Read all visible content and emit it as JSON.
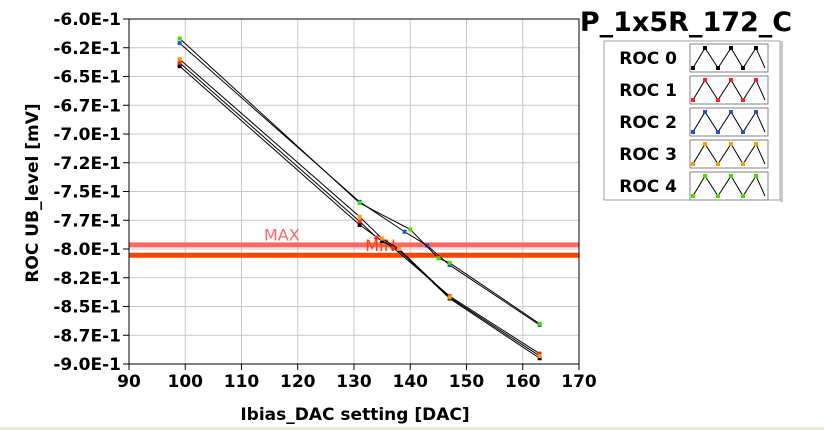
{
  "window": {
    "bottom_strip_color": "#ece9d8"
  },
  "chart_data": {
    "type": "line",
    "title": "P_1x5R_172_C",
    "xlabel": "Ibias_DAC setting [DAC]",
    "ylabel": "ROC UB_level [mV]",
    "xlim": [
      90,
      170
    ],
    "ylim": [
      -0.9,
      -0.6
    ],
    "x_ticks": [
      90,
      100,
      110,
      120,
      130,
      140,
      150,
      160,
      170
    ],
    "y_ticks": [
      {
        "value": -0.6,
        "label": "-6.0E-1"
      },
      {
        "value": -0.625,
        "label": "-6.2E-1"
      },
      {
        "value": -0.65,
        "label": "-6.5E-1"
      },
      {
        "value": -0.675,
        "label": "-6.7E-1"
      },
      {
        "value": -0.7,
        "label": "-7.0E-1"
      },
      {
        "value": -0.725,
        "label": "-7.2E-1"
      },
      {
        "value": -0.75,
        "label": "-7.5E-1"
      },
      {
        "value": -0.775,
        "label": "-7.7E-1"
      },
      {
        "value": -0.8,
        "label": "-8.0E-1"
      },
      {
        "value": -0.825,
        "label": "-8.2E-1"
      },
      {
        "value": -0.85,
        "label": "-8.5E-1"
      },
      {
        "value": -0.875,
        "label": "-8.7E-1"
      },
      {
        "value": -0.9,
        "label": "-9.0E-1"
      }
    ],
    "grid": true,
    "legend_position": "top-right",
    "reference_lines": [
      {
        "label": "MAX",
        "y": -0.796,
        "color": "#ff6666"
      },
      {
        "label": "MIN",
        "y": -0.805,
        "color": "#ff4400"
      }
    ],
    "series": [
      {
        "name": "ROC 0",
        "color": "#000000",
        "x": [
          99,
          131,
          135,
          138,
          147,
          163
        ],
        "y": [
          -0.641,
          -0.779,
          -0.793,
          -0.801,
          -0.843,
          -0.895
        ]
      },
      {
        "name": "ROC 1",
        "color": "#ff2222",
        "x": [
          99,
          131,
          134,
          137,
          147,
          163
        ],
        "y": [
          -0.638,
          -0.776,
          -0.79,
          -0.799,
          -0.841,
          -0.891
        ]
      },
      {
        "name": "ROC 2",
        "color": "#2255cc",
        "x": [
          99,
          131,
          139,
          143,
          147,
          163
        ],
        "y": [
          -0.621,
          -0.759,
          -0.785,
          -0.797,
          -0.814,
          -0.866
        ]
      },
      {
        "name": "ROC 3",
        "color": "#ff9900",
        "x": [
          99,
          131,
          135,
          138,
          147,
          163
        ],
        "y": [
          -0.635,
          -0.772,
          -0.791,
          -0.8,
          -0.842,
          -0.893
        ]
      },
      {
        "name": "ROC 4",
        "color": "#44dd00",
        "x": [
          99,
          131,
          140,
          145,
          147,
          163
        ],
        "y": [
          -0.617,
          -0.76,
          -0.783,
          -0.808,
          -0.812,
          -0.865
        ]
      }
    ]
  }
}
